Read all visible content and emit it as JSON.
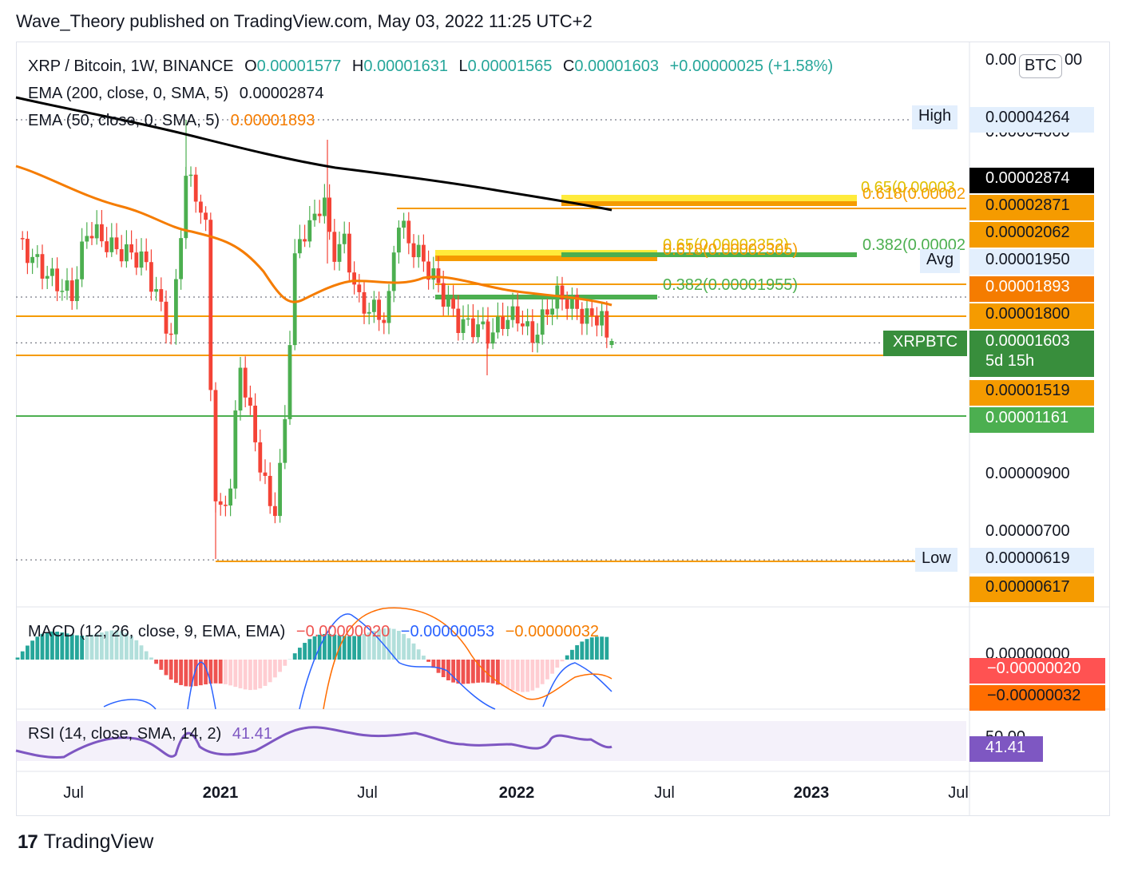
{
  "header": {
    "text": "Wave_Theory published on TradingView.com, May 03, 2022 11:25 UTC+2"
  },
  "footer": {
    "brand": "TradingView",
    "logo_text": "17"
  },
  "currency_badge": "BTC",
  "legend": {
    "symbol": "XRP / Bitcoin, 1W, BINANCE",
    "o_label": "O",
    "o_value": "0.00001577",
    "h_label": "H",
    "h_value": "0.00001631",
    "l_label": "L",
    "l_value": "0.00001565",
    "c_label": "C",
    "c_value": "0.00001603",
    "change": "+0.00000025 (+1.58%)",
    "ema200_label": "EMA (200, close, 0, SMA, 5)",
    "ema200_value": "0.00002874",
    "ema50_label": "EMA (50, close, 0, SMA, 5)",
    "ema50_value": "0.00001893",
    "macd_label": "MACD (12, 26, close, 9, EMA, EMA)",
    "macd_hist": "−0.00000020",
    "macd_line": "−0.00000053",
    "macd_signal": "−0.00000032",
    "rsi_label": "RSI (14, close, SMA, 14, 2)",
    "rsi_value": "41.41"
  },
  "price_axis": {
    "ticks": [
      "0.00004000",
      "0.00000900",
      "0.00000700"
    ],
    "top_tick": "0.00",
    "top_tick_tail": "00"
  },
  "price_labels": {
    "high_text": "High",
    "high_value": "0.00004264",
    "ema200": "0.00002874",
    "orange_2871": "0.00002871",
    "orange_2062": "0.00002062",
    "avg_text": "Avg",
    "avg_value": "0.00001950",
    "ema50": "0.00001893",
    "orange_1800": "0.00001800",
    "symbol_tag": "XRPBTC",
    "last_value": "0.00001603",
    "countdown": "5d 15h",
    "orange_1519": "0.00001519",
    "green_1161": "0.00001161",
    "low_text": "Low",
    "low_value": "0.00000619",
    "orange_617": "0.00000617"
  },
  "macd_axis": {
    "tick": "0.00000000",
    "hist_value": "−0.00000020",
    "signal_value": "−0.00000032"
  },
  "rsi_axis": {
    "tick": "50.00",
    "value": "41.41"
  },
  "fib_labels": {
    "upper_065": "0.65(0.00003",
    "upper_0618": "0.618(0.00002",
    "mid_065": "0.65(0.00002352)",
    "mid_0618": "0.618(0.00002305)",
    "mid_0382": "0.382(0.00002",
    "lower_0382": "0.382(0.00001955)"
  },
  "x_axis": {
    "ticks": [
      {
        "label": "Jul",
        "bold": false
      },
      {
        "label": "2021",
        "bold": true
      },
      {
        "label": "Jul",
        "bold": false
      },
      {
        "label": "2022",
        "bold": true
      },
      {
        "label": "Jul",
        "bold": false
      },
      {
        "label": "2023",
        "bold": true
      },
      {
        "label": "Jul",
        "bold": false
      }
    ]
  },
  "colors": {
    "up": "#26a69a",
    "down": "#ef5350",
    "candle_up": "#4caf50",
    "candle_down": "#f44336",
    "ema200": "#000000",
    "ema50": "#f57c00",
    "orange": "#f59b00",
    "green": "#4caf50",
    "yellow": "#ffeb3b",
    "rsi": "#7e57c2",
    "macd": "#2962ff",
    "signal": "#ff6d00"
  },
  "chart_data": {
    "type": "candlestick",
    "title": "XRP / Bitcoin, 1W, BINANCE",
    "ylabel": "BTC",
    "y_scale": "log",
    "ylim": [
      5.6e-06,
      4.6e-05
    ],
    "x": [
      "2020-04",
      "2020-05",
      "2020-06",
      "2020-07",
      "2020-08",
      "2020-09",
      "2020-10",
      "2020-11",
      "2020-12",
      "2021-01",
      "2021-02",
      "2021-03",
      "2021-04",
      "2021-05",
      "2021-06",
      "2021-07",
      "2021-08",
      "2021-09",
      "2021-10",
      "2021-11",
      "2021-12",
      "2022-01",
      "2022-02",
      "2022-03",
      "2022-04",
      "2022-05"
    ],
    "close_approx": [
      2.3e-05,
      2.1e-05,
      2.05e-05,
      2.35e-05,
      2.45e-05,
      2.2e-05,
      1.8e-05,
      3.3e-05,
      9e-06,
      7.5e-06,
      1.3e-05,
      9.5e-06,
      2.7e-05,
      3e-05,
      1.9e-05,
      1.9e-05,
      2.6e-05,
      2.05e-05,
      1.75e-05,
      1.8e-05,
      1.7e-05,
      1.8e-05,
      1.9e-05,
      1.75e-05,
      1.6e-05,
      1.6e-05
    ],
    "last": {
      "open": 1.577e-05,
      "high": 1.631e-05,
      "low": 1.565e-05,
      "close": 1.603e-05,
      "change": 2.5e-07,
      "change_pct": 1.58
    },
    "all_time_high": 4.264e-05,
    "all_time_low": 6.19e-06,
    "average": 1.95e-05,
    "ema200": 2.874e-05,
    "ema50": 1.893e-05,
    "horizontal_levels": [
      2.871e-05,
      2.062e-05,
      1.8e-05,
      1.519e-05,
      1.161e-05,
      6.17e-06
    ],
    "fib_levels": [
      {
        "label": "0.65",
        "value": 2.352e-05
      },
      {
        "label": "0.618",
        "value": 2.305e-05
      },
      {
        "label": "0.382",
        "value": 1.955e-05
      }
    ],
    "macd": {
      "histogram": -2e-07,
      "macd": -5.3e-07,
      "signal": -3.2e-07
    },
    "rsi": {
      "value": 41.41,
      "mid": 50.0
    }
  }
}
